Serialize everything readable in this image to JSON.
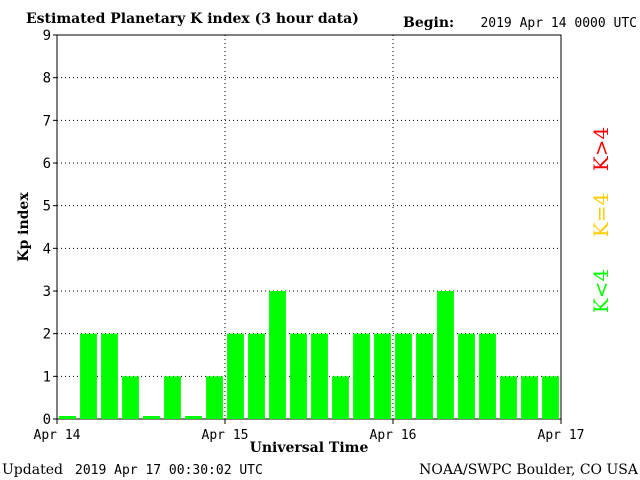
{
  "header": {
    "title": "Estimated Planetary K index (3 hour data)",
    "begin_label": "Begin:",
    "begin_value": "2019 Apr 14 0000 UTC"
  },
  "footer": {
    "updated_label": "Updated",
    "updated_value": "2019 Apr 17 00:30:02 UTC",
    "credit": "NOAA/SWPC Boulder, CO USA"
  },
  "legend": {
    "high": "K>4",
    "mid": "K=4",
    "low": "K<4"
  },
  "colors": {
    "bar": "#00ff00",
    "high": "#ff0000",
    "mid": "#ffcc00",
    "low": "#00ff00",
    "grid": "#000000"
  },
  "chart_data": {
    "type": "bar",
    "title": "Estimated Planetary K index (3 hour data)",
    "xlabel": "Universal Time",
    "ylabel": "Kp index",
    "ylim": [
      0,
      9
    ],
    "y_ticks": [
      "0",
      "1",
      "2",
      "3",
      "4",
      "5",
      "6",
      "7",
      "8",
      "9"
    ],
    "x_ticks": [
      "Apr 14",
      "Apr 15",
      "Apr 16",
      "Apr 17"
    ],
    "grid": "dotted",
    "legend_placement": "right",
    "values": [
      0,
      2,
      2,
      1,
      0,
      1,
      0,
      1,
      2,
      2,
      3,
      2,
      2,
      1,
      2,
      2,
      2,
      2,
      3,
      2,
      2,
      1,
      1,
      1
    ]
  }
}
